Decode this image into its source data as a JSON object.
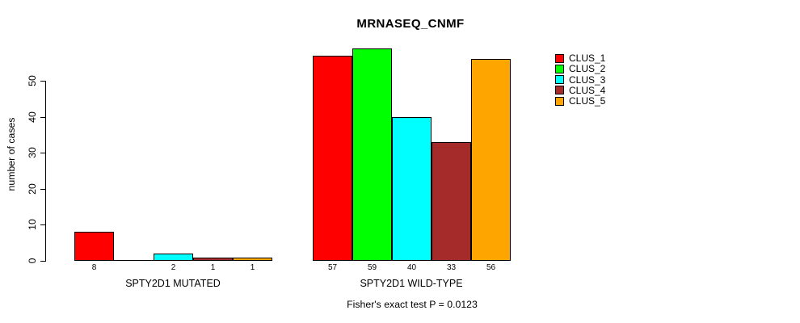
{
  "chart_data": {
    "type": "bar",
    "title": "MRNASEQ_CNMF",
    "ylabel": "number of cases",
    "xlabel": "",
    "subtitle": "Fisher's exact test P = 0.0123",
    "categories": [
      "SPTY2D1 MUTATED",
      "SPTY2D1 WILD-TYPE"
    ],
    "series": [
      {
        "name": "CLUS_1",
        "color": "#FF0000",
        "values": [
          8,
          57
        ]
      },
      {
        "name": "CLUS_2",
        "color": "#00FF00",
        "values": [
          0,
          59
        ]
      },
      {
        "name": "CLUS_3",
        "color": "#00FFFF",
        "values": [
          2,
          40
        ]
      },
      {
        "name": "CLUS_4",
        "color": "#A52A2A",
        "values": [
          1,
          33
        ]
      },
      {
        "name": "CLUS_5",
        "color": "#FFA500",
        "values": [
          1,
          56
        ]
      }
    ],
    "yticks": [
      0,
      10,
      20,
      30,
      40,
      50
    ],
    "ylim": [
      0,
      59
    ],
    "bar_value_labels_shown": true,
    "zero_value_labels_hidden": true,
    "grid": false,
    "legend_position": "right",
    "axis_color": "#000000",
    "bar_border_color": "#000000",
    "background_color": "#FFFFFF"
  }
}
